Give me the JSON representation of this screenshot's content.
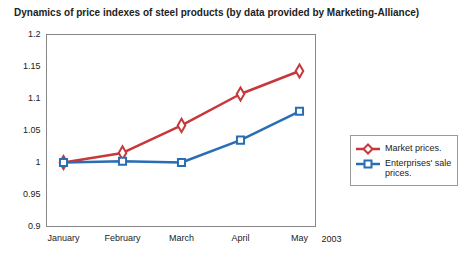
{
  "chart_data": {
    "type": "line",
    "title": "Dynamics of price indexes of steel products (by data provided by Marketing-Alliance)",
    "categories": [
      "January",
      "February",
      "March",
      "April",
      "May"
    ],
    "xlabel": "2003",
    "series": [
      {
        "name": "Market prices.",
        "color": "#c8373a",
        "marker": "diamond",
        "values": [
          1.0,
          1.015,
          1.058,
          1.107,
          1.143
        ]
      },
      {
        "name": "Enterprises' sale prices.",
        "color": "#2a6db5",
        "marker": "square",
        "values": [
          1.0,
          1.002,
          1.0,
          1.035,
          1.08
        ]
      }
    ],
    "ylim": [
      0.9,
      1.2
    ],
    "yticks": [
      0.9,
      0.95,
      1,
      1.05,
      1.1,
      1.15,
      1.2
    ],
    "grid": false,
    "legend": "right"
  }
}
